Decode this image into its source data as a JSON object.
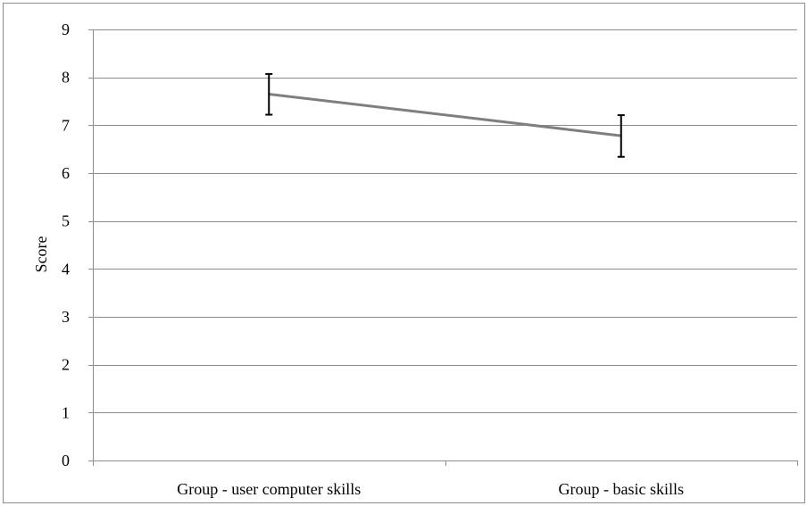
{
  "chart_data": {
    "type": "line",
    "title": "",
    "xlabel": "",
    "ylabel": "Score",
    "ylim": [
      0,
      9
    ],
    "yticks": [
      "0",
      "1",
      "2",
      "3",
      "4",
      "5",
      "6",
      "7",
      "8",
      "9"
    ],
    "categories": [
      "Group - user computer skills",
      "Group - basic skills"
    ],
    "series": [
      {
        "values": [
          7.65,
          6.78
        ],
        "error_high": [
          8.07,
          7.21
        ],
        "error_low": [
          7.22,
          6.34
        ],
        "color": "#7f7f7f"
      }
    ],
    "grid": true,
    "legend": "none"
  }
}
